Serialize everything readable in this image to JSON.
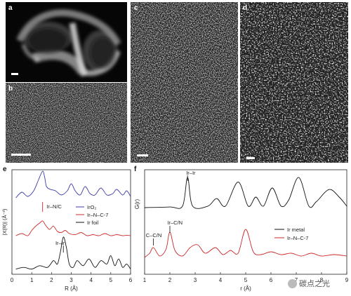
{
  "panels": {
    "a": {
      "label": "a"
    },
    "b": {
      "label": "b"
    },
    "c": {
      "label": "c"
    },
    "d": {
      "label": "d"
    },
    "e": {
      "label": "e"
    },
    "f": {
      "label": "f"
    }
  },
  "colors": {
    "irO2": "#3b3ba8",
    "irnc7": "#cc2a2a",
    "irfoil": "#111111",
    "irmetal": "#111111"
  },
  "watermark": "碳点之光",
  "chart_data": [
    {
      "panel": "e",
      "type": "line",
      "xlabel": "R (Å)",
      "ylabel": "|X(R)| (Å⁻³)",
      "xlim": [
        0,
        6
      ],
      "xticks": [
        "0",
        "1",
        "2",
        "3",
        "4",
        "5",
        "6"
      ],
      "annotations": [
        "Ir–N/C",
        "Ir–Ir"
      ],
      "legend": [
        "IrO₂",
        "Ir–N–C-7",
        "Ir foil"
      ],
      "series": [
        {
          "name": "IrO₂",
          "x": [
            0.2,
            0.5,
            0.8,
            1.1,
            1.35,
            1.55,
            1.65,
            1.75,
            1.95,
            2.2,
            2.5,
            2.8,
            3.0,
            3.2,
            3.45,
            3.7,
            3.95,
            4.2,
            4.5,
            4.8,
            5.1,
            5.3,
            5.6,
            5.8,
            6.0
          ],
          "y": [
            0.05,
            0.25,
            0.1,
            0.3,
            0.7,
            1.0,
            0.8,
            0.45,
            0.35,
            0.3,
            0.15,
            0.3,
            0.55,
            0.3,
            0.15,
            0.45,
            0.2,
            0.15,
            0.4,
            0.15,
            0.2,
            0.35,
            0.15,
            0.3,
            0.1
          ]
        },
        {
          "name": "Ir–N–C-7",
          "x": [
            0.2,
            0.5,
            0.8,
            1.0,
            1.2,
            1.4,
            1.55,
            1.7,
            1.9,
            2.1,
            2.3,
            2.5,
            2.7,
            2.9,
            3.2,
            3.5,
            3.8,
            4.1,
            4.4,
            4.7,
            5.0,
            5.3,
            5.6,
            5.8,
            6.0
          ],
          "y": [
            0.1,
            0.2,
            0.1,
            0.35,
            0.55,
            0.7,
            0.8,
            0.6,
            0.4,
            0.55,
            0.3,
            0.25,
            0.35,
            0.2,
            0.15,
            0.25,
            0.1,
            0.15,
            0.1,
            0.2,
            0.1,
            0.15,
            0.1,
            0.12,
            0.1
          ]
        },
        {
          "name": "Ir foil",
          "x": [
            0.2,
            0.6,
            1.0,
            1.4,
            1.8,
            2.1,
            2.3,
            2.45,
            2.6,
            2.75,
            2.9,
            3.1,
            3.3,
            3.6,
            3.9,
            4.2,
            4.5,
            4.8,
            5.0,
            5.2,
            5.4,
            5.6,
            5.8,
            6.0
          ],
          "y": [
            0.05,
            0.1,
            0.05,
            0.15,
            0.1,
            0.3,
            0.2,
            0.55,
            1.0,
            0.7,
            0.2,
            0.1,
            0.3,
            0.15,
            0.35,
            0.1,
            0.3,
            0.2,
            0.45,
            0.15,
            0.35,
            0.1,
            0.2,
            0.05
          ]
        }
      ]
    },
    {
      "panel": "f",
      "type": "line",
      "xlabel": "r (Å)",
      "ylabel": "G(r)",
      "xlim": [
        1,
        9
      ],
      "xticks": [
        "1",
        "2",
        "3",
        "4",
        "5",
        "6",
        "7",
        "8",
        "9"
      ],
      "annotations": [
        "Ir–Ir",
        "Ir–C/N",
        "C–C/N"
      ],
      "legend": [
        "Ir metal",
        "Ir–N–C-7"
      ],
      "series": [
        {
          "name": "Ir metal",
          "x": [
            1.0,
            2.0,
            2.5,
            2.7,
            2.9,
            3.5,
            3.85,
            4.2,
            4.7,
            5.1,
            5.4,
            5.7,
            6.05,
            6.4,
            6.7,
            7.1,
            7.5,
            7.8,
            8.3,
            8.7,
            9.0
          ],
          "y": [
            0,
            0.02,
            0.05,
            1.0,
            0.05,
            0.05,
            0.3,
            0.05,
            0.85,
            0.05,
            0.35,
            0.05,
            0.65,
            0.05,
            0.25,
            1.0,
            0.05,
            0.2,
            0.6,
            0.35,
            0.05
          ]
        },
        {
          "name": "Ir–N–C-7",
          "x": [
            1.0,
            1.2,
            1.35,
            1.6,
            1.85,
            2.0,
            2.2,
            2.5,
            2.8,
            3.1,
            3.4,
            3.8,
            4.1,
            4.4,
            4.7,
            5.0,
            5.3,
            5.6,
            6.0,
            6.4,
            6.8,
            7.2,
            7.6,
            8.0,
            8.5,
            9.0
          ],
          "y": [
            0.0,
            0.15,
            0.35,
            0.05,
            0.3,
            0.9,
            0.25,
            0.05,
            0.35,
            0.45,
            0.15,
            0.35,
            0.1,
            0.25,
            0.15,
            1.0,
            0.2,
            0.1,
            0.2,
            0.1,
            0.15,
            0.05,
            0.15,
            0.05,
            0.1,
            0.05
          ]
        }
      ]
    }
  ]
}
